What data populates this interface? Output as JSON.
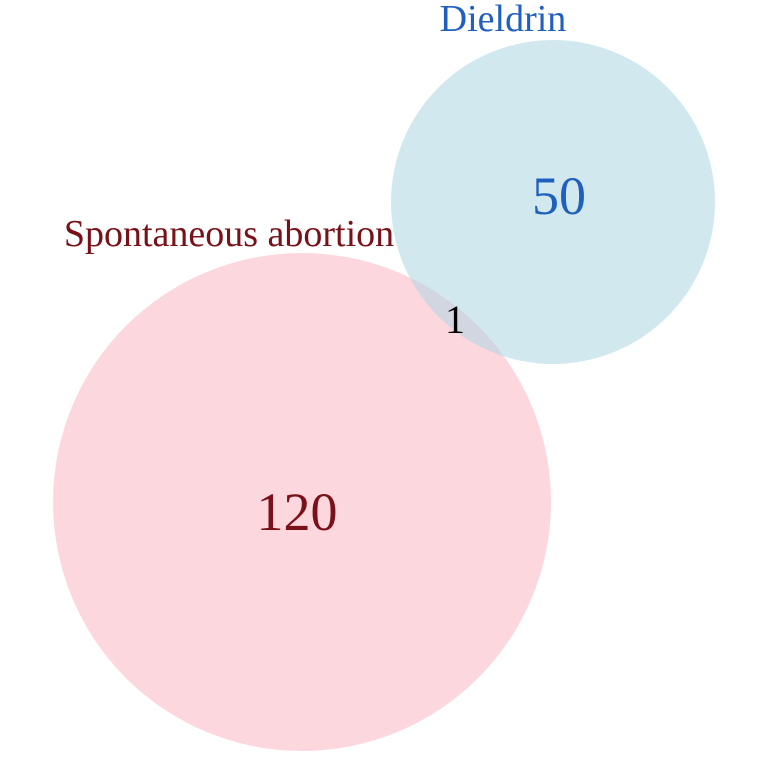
{
  "diagram": {
    "type": "venn",
    "sets": [
      {
        "id": "a",
        "label": "Spontaneous abortion",
        "only_count": "120",
        "fill": "#fdd7de",
        "text_color": "#7a1018"
      },
      {
        "id": "b",
        "label": "Dieldrin",
        "only_count": "50",
        "fill": "#d1e8ef",
        "text_color": "#1f5fbf"
      }
    ],
    "intersection": {
      "count": "1",
      "fill": "#d2d6e0",
      "text_color": "#000000"
    }
  }
}
